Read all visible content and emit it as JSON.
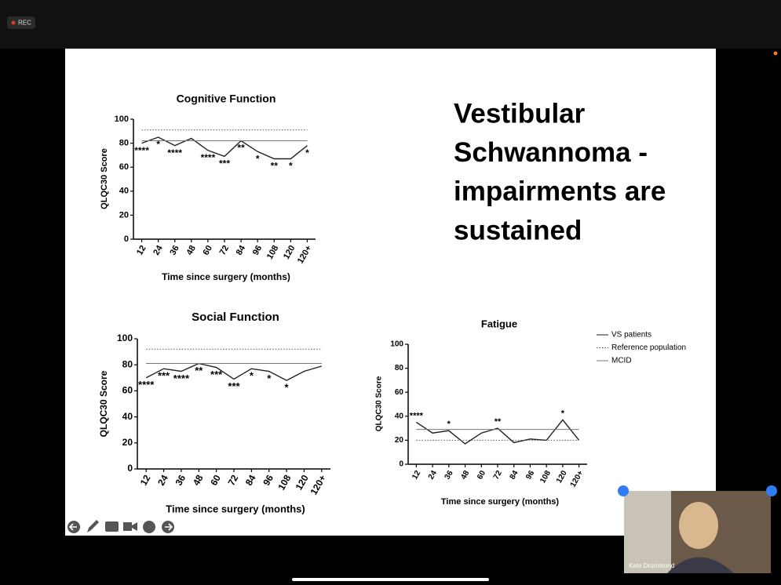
{
  "recording": "REC",
  "participant": "Kate Drummond",
  "slide": {
    "heading": [
      "Vestibular",
      "Schwannoma -",
      "impairments are",
      "sustained"
    ]
  },
  "chart_data": [
    {
      "type": "line",
      "title": "Cognitive Function",
      "x_label": "Time since surgery (months)",
      "y_label": "QLQC30 Score",
      "categories": [
        "12",
        "24",
        "36",
        "48",
        "60",
        "72",
        "84",
        "96",
        "108",
        "120",
        "120+"
      ],
      "ylim": [
        0,
        100
      ],
      "yticks": [
        0,
        20,
        40,
        60,
        80,
        100
      ],
      "series": [
        {
          "color": "#222222",
          "style": "solid",
          "values": [
            80,
            85,
            78,
            84,
            74,
            69,
            82,
            73,
            67,
            67,
            78
          ]
        },
        {
          "color": "#555555",
          "style": "dotted",
          "values": [
            91,
            91,
            91,
            91,
            91,
            91,
            91,
            91,
            91,
            91,
            91
          ]
        },
        {
          "color": "#777777",
          "style": "solid",
          "values": [
            82,
            82,
            82,
            82,
            82,
            82,
            82,
            82,
            82,
            82,
            82
          ]
        }
      ],
      "significance": [
        "****",
        "*",
        "****",
        null,
        "****",
        "***",
        "**",
        "*",
        "**",
        "*",
        "*"
      ],
      "significance_position": "below"
    },
    {
      "type": "line",
      "title": "Social Function",
      "x_label": "Time since surgery (months)",
      "y_label": "QLQC30 Score",
      "categories": [
        "12",
        "24",
        "36",
        "48",
        "60",
        "72",
        "84",
        "96",
        "108",
        "120",
        "120+"
      ],
      "ylim": [
        0,
        100
      ],
      "yticks": [
        0,
        20,
        40,
        60,
        80,
        100
      ],
      "series": [
        {
          "color": "#222222",
          "style": "solid",
          "values": [
            70,
            77,
            75,
            81,
            78,
            69,
            77,
            75,
            68,
            75,
            79
          ]
        },
        {
          "color": "#555555",
          "style": "dotted",
          "values": [
            92,
            92,
            92,
            92,
            92,
            92,
            92,
            92,
            92,
            92,
            92
          ]
        },
        {
          "color": "#777777",
          "style": "solid",
          "values": [
            81,
            81,
            81,
            81,
            81,
            81,
            81,
            81,
            81,
            81,
            81
          ]
        }
      ],
      "significance": [
        "****",
        "***",
        "****",
        "**",
        "***",
        "***",
        "*",
        "*",
        "*",
        null,
        null
      ],
      "significance_position": "below"
    },
    {
      "type": "line",
      "title": "Fatigue",
      "x_label": "Time since surgery (months)",
      "y_label": "QLQC30 Score",
      "categories": [
        "12",
        "24",
        "36",
        "48",
        "60",
        "72",
        "84",
        "96",
        "108",
        "120",
        "120+"
      ],
      "ylim": [
        0,
        100
      ],
      "yticks": [
        0,
        20,
        40,
        60,
        80,
        100
      ],
      "series": [
        {
          "name": "VS patients",
          "color": "#222222",
          "style": "solid",
          "values": [
            35,
            26,
            28,
            17,
            26,
            30,
            18,
            21,
            20,
            37,
            20
          ]
        },
        {
          "name": "Reference population",
          "color": "#555555",
          "style": "dotted",
          "values": [
            20,
            20,
            20,
            20,
            20,
            20,
            20,
            20,
            20,
            20,
            20
          ]
        },
        {
          "name": "MCID",
          "color": "#777777",
          "style": "solid",
          "values": [
            29,
            29,
            29,
            29,
            29,
            29,
            29,
            29,
            29,
            29,
            29
          ]
        }
      ],
      "significance": [
        "****",
        null,
        "*",
        null,
        null,
        "**",
        null,
        null,
        null,
        "*",
        null
      ],
      "significance_position": "above"
    }
  ]
}
